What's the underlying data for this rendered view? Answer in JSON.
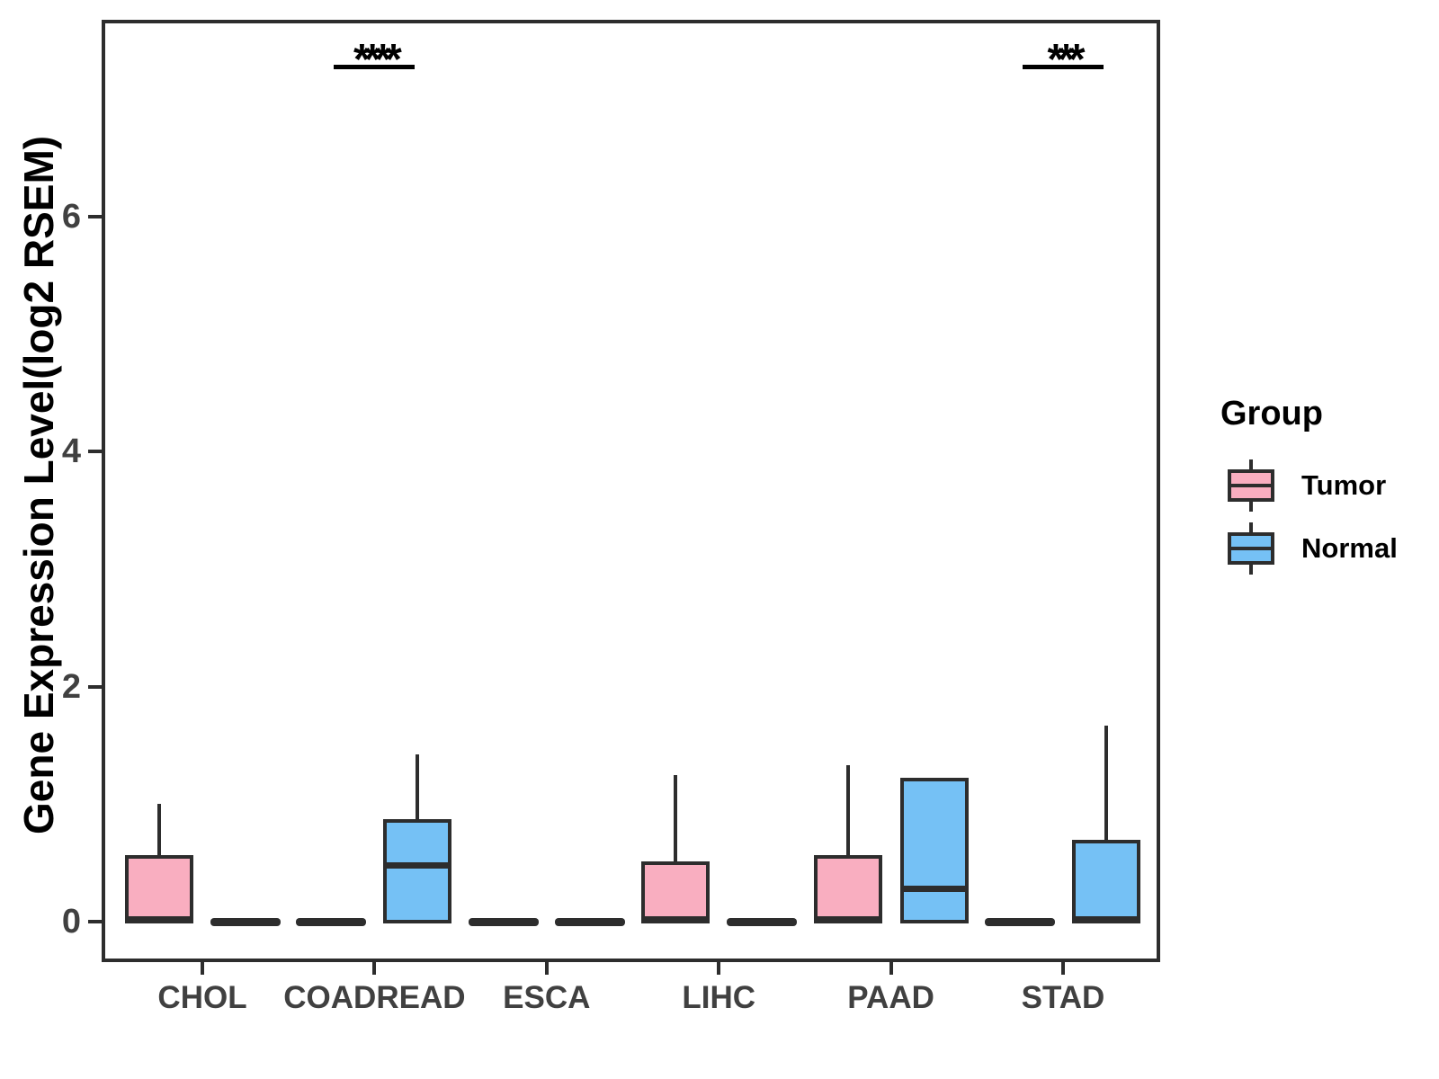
{
  "chart_data": {
    "type": "grouped_boxplot",
    "title": "",
    "ylabel": "Gene Expression Level(log2 RSEM)",
    "xlabel": "",
    "categories": [
      "CHOL",
      "COADREAD",
      "ESCA",
      "LIHC",
      "PAAD",
      "STAD"
    ],
    "yticks": [
      0,
      2,
      4,
      6
    ],
    "ylim": [
      -0.34,
      7.66
    ],
    "grid": false,
    "legend_position": "right",
    "series": [
      {
        "name": "Tumor",
        "color": "#F9AEC0",
        "boxes": [
          {
            "category": "CHOL",
            "min": 0,
            "q1": 0,
            "median": 0,
            "q3": 0.55,
            "max": 1.0
          },
          {
            "category": "COADREAD",
            "min": 0,
            "q1": 0,
            "median": 0,
            "q3": 0,
            "max": 0
          },
          {
            "category": "ESCA",
            "min": 0,
            "q1": 0,
            "median": 0,
            "q3": 0,
            "max": 0
          },
          {
            "category": "LIHC",
            "min": 0,
            "q1": 0,
            "median": 0,
            "q3": 0.5,
            "max": 1.25
          },
          {
            "category": "PAAD",
            "min": 0,
            "q1": 0,
            "median": 0,
            "q3": 0.55,
            "max": 1.33
          },
          {
            "category": "STAD",
            "min": 0,
            "q1": 0,
            "median": 0,
            "q3": 0,
            "max": 0
          }
        ]
      },
      {
        "name": "Normal",
        "color": "#75C1F5",
        "boxes": [
          {
            "category": "CHOL",
            "min": 0,
            "q1": 0,
            "median": 0,
            "q3": 0,
            "max": 0
          },
          {
            "category": "COADREAD",
            "min": 0,
            "q1": 0,
            "median": 0.48,
            "q3": 0.86,
            "max": 1.42
          },
          {
            "category": "ESCA",
            "min": 0,
            "q1": 0,
            "median": 0,
            "q3": 0,
            "max": 0
          },
          {
            "category": "LIHC",
            "min": 0,
            "q1": 0,
            "median": 0,
            "q3": 0,
            "max": 0
          },
          {
            "category": "PAAD",
            "min": 0,
            "q1": 0,
            "median": 0.28,
            "q3": 1.21,
            "max": 1.21
          },
          {
            "category": "STAD",
            "min": 0,
            "q1": 0,
            "median": 0,
            "q3": 0.68,
            "max": 1.67
          }
        ]
      }
    ],
    "significance": [
      {
        "category": "COADREAD",
        "label": "****"
      },
      {
        "category": "STAD",
        "label": "***"
      }
    ]
  },
  "legend": {
    "title": "Group",
    "entries": [
      {
        "label": "Tumor",
        "color": "#F9AEC0"
      },
      {
        "label": "Normal",
        "color": "#75C1F5"
      }
    ]
  },
  "colors": {
    "stroke": "#2d2d2d",
    "annotation": "#000000",
    "axis_text": "#404040",
    "pink": "#F9AEC0",
    "blue": "#75C1F5"
  }
}
